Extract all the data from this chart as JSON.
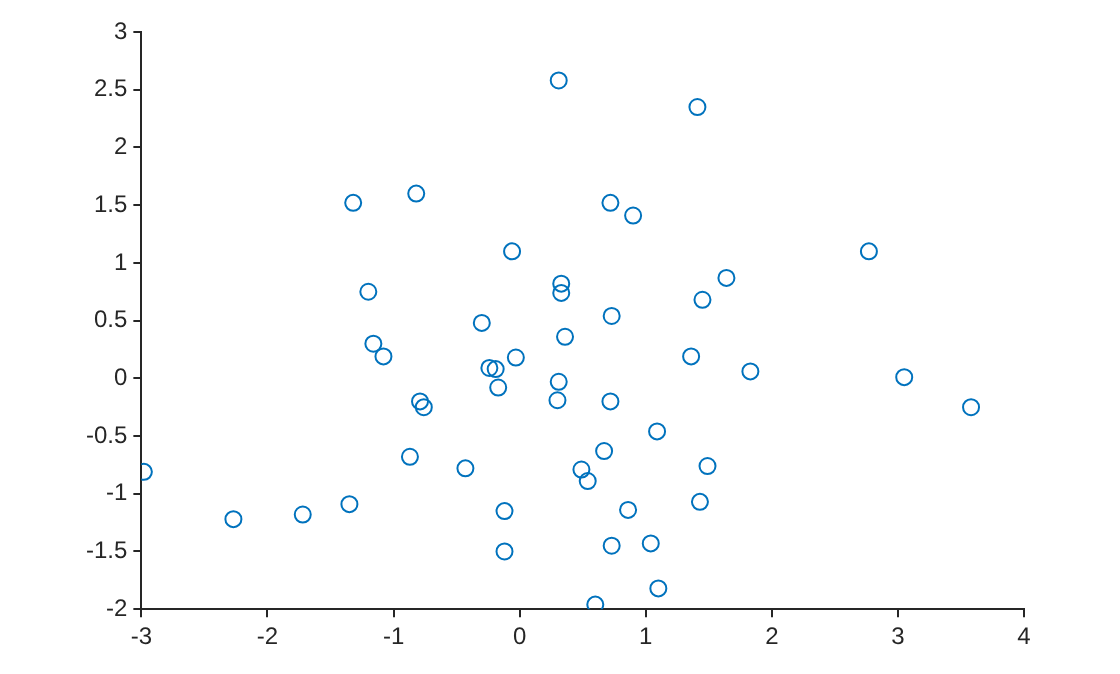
{
  "chart_data": {
    "type": "scatter",
    "xlim": [
      -3,
      4
    ],
    "ylim": [
      -2,
      3
    ],
    "xticks": [
      -3,
      -2,
      -1,
      0,
      1,
      2,
      3,
      4
    ],
    "yticks": [
      -2,
      -1.5,
      -1,
      -0.5,
      0,
      0.5,
      1,
      1.5,
      2,
      2.5,
      3
    ],
    "grid": false,
    "legend": false,
    "marker": "circle",
    "series": [
      {
        "color": "#0072bd",
        "x": [
          -2.98,
          -2.27,
          -1.72,
          -1.35,
          -1.32,
          -1.2,
          -1.16,
          -1.08,
          -0.87,
          -0.82,
          -0.79,
          -0.76,
          -0.43,
          -0.3,
          -0.24,
          -0.19,
          -0.17,
          -0.12,
          -0.12,
          -0.06,
          -0.03,
          0.31,
          0.33,
          0.33,
          0.36,
          0.31,
          0.3,
          0.49,
          0.54,
          0.67,
          0.72,
          0.73,
          0.72,
          0.73,
          0.6,
          0.86,
          0.9,
          1.04,
          1.09,
          1.1,
          1.41,
          1.36,
          1.43,
          1.45,
          1.49,
          1.64,
          1.83,
          2.77,
          3.05,
          3.58
        ],
        "values": [
          -0.81,
          -1.22,
          -1.18,
          -1.09,
          1.52,
          0.75,
          0.3,
          0.19,
          -0.68,
          1.6,
          -0.2,
          -0.25,
          -0.78,
          0.48,
          0.09,
          0.08,
          -0.08,
          -1.15,
          -1.5,
          1.1,
          0.18,
          2.58,
          0.74,
          0.82,
          0.36,
          -0.03,
          -0.19,
          -0.79,
          -0.89,
          -0.63,
          1.52,
          0.54,
          -0.2,
          -1.45,
          -1.96,
          -1.14,
          1.41,
          -1.43,
          -0.46,
          -1.82,
          2.35,
          0.19,
          -1.07,
          0.68,
          -0.76,
          0.87,
          0.06,
          1.1,
          0.01,
          -0.25
        ]
      }
    ]
  }
}
